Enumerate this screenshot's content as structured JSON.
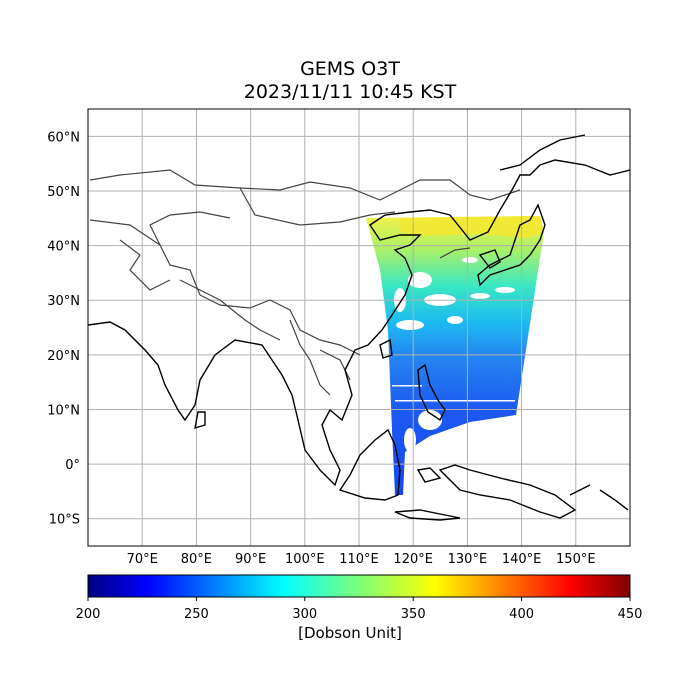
{
  "title": "GEMS O3T",
  "subtitle": "2023/11/11 10:45 KST",
  "map": {
    "lon_range": [
      60,
      160
    ],
    "lat_range": [
      -15,
      65
    ],
    "lon_ticks": [
      "70°E",
      "80°E",
      "90°E",
      "100°E",
      "110°E",
      "120°E",
      "130°E",
      "140°E",
      "150°E"
    ],
    "lon_values": [
      70,
      80,
      90,
      100,
      110,
      120,
      130,
      140,
      150
    ],
    "lat_ticks": [
      "60°N",
      "50°N",
      "40°N",
      "30°N",
      "20°N",
      "10°N",
      "0°",
      "10°S"
    ],
    "lat_values": [
      60,
      50,
      40,
      30,
      20,
      10,
      0,
      -10
    ],
    "grid": true
  },
  "colorbar": {
    "ticks": [
      "200",
      "250",
      "300",
      "350",
      "400",
      "450"
    ],
    "tick_values": [
      200,
      250,
      300,
      350,
      400,
      450
    ],
    "range": [
      200,
      450
    ],
    "colormap": "jet",
    "label": "[Dobson Unit]"
  },
  "colors": {
    "coast": "#000000",
    "border": "#444444",
    "grid": "#b0b0b0"
  }
}
